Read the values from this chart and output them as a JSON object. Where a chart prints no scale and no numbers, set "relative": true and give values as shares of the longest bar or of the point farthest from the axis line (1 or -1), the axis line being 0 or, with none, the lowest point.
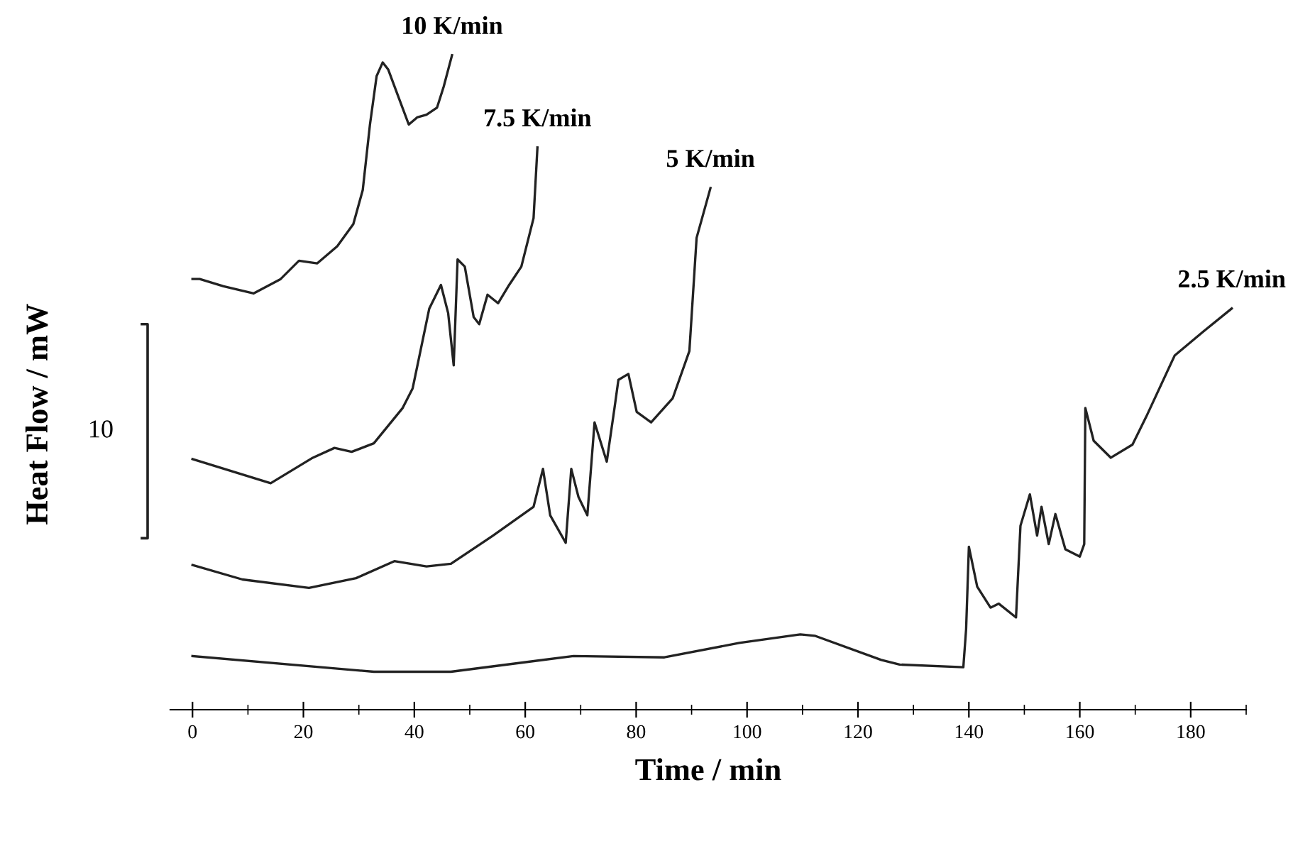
{
  "chart_data": {
    "type": "line",
    "relative": true,
    "xlabel": "Time / min",
    "ylabel": "Heat Flow / mW",
    "xlim": [
      -4,
      190
    ],
    "xticks": [
      0,
      20,
      40,
      60,
      80,
      100,
      120,
      140,
      160,
      180
    ],
    "grid": false,
    "legend": false,
    "marker": "none",
    "line_style": "solid",
    "tick_labels": "x",
    "annotations": [
      "10"
    ],
    "series": [
      {
        "name": "10 K/min",
        "color": "#222222",
        "x": [
          0,
          1.3,
          5.6,
          11.0,
          15.9,
          19.2,
          22.5,
          26.1,
          29.0,
          30.7,
          32.0,
          33.2,
          34.3,
          35.3,
          37.1,
          39.0,
          40.5,
          42.2,
          44.1,
          45.3,
          46.8
        ],
        "values": [
          0.658,
          0.658,
          0.647,
          0.636,
          0.658,
          0.686,
          0.682,
          0.708,
          0.742,
          0.794,
          0.894,
          0.968,
          0.989,
          0.978,
          0.937,
          0.894,
          0.905,
          0.909,
          0.92,
          0.952,
          1.0
        ]
      },
      {
        "name": "7.5 K/min",
        "color": "#222222",
        "x": [
          0,
          14.1,
          21.7,
          25.6,
          28.7,
          32.7,
          37.9,
          39.7,
          42.7,
          44.8,
          46.1,
          47.1,
          47.8,
          49.1,
          50.7,
          51.7,
          53.2,
          55.1,
          57.1,
          59.3,
          61.5,
          62.2
        ],
        "values": [
          0.383,
          0.346,
          0.385,
          0.4,
          0.394,
          0.407,
          0.461,
          0.491,
          0.613,
          0.649,
          0.606,
          0.526,
          0.688,
          0.677,
          0.6,
          0.589,
          0.634,
          0.621,
          0.649,
          0.677,
          0.751,
          0.859
        ]
      },
      {
        "name": "5 K/min",
        "color": "#222222",
        "x": [
          0,
          9.0,
          21.0,
          29.5,
          36.4,
          42.2,
          46.6,
          54.2,
          61.5,
          63.2,
          64.5,
          67.3,
          68.3,
          69.6,
          71.2,
          72.5,
          74.7,
          76.1,
          76.8,
          78.6,
          80.1,
          82.7,
          86.6,
          89.6,
          90.9,
          93.4
        ],
        "values": [
          0.221,
          0.199,
          0.186,
          0.201,
          0.227,
          0.219,
          0.223,
          0.266,
          0.31,
          0.368,
          0.297,
          0.255,
          0.368,
          0.325,
          0.297,
          0.439,
          0.379,
          0.461,
          0.504,
          0.513,
          0.455,
          0.439,
          0.476,
          0.548,
          0.721,
          0.797
        ]
      },
      {
        "name": "2.5 K/min",
        "color": "#222222",
        "x": [
          0,
          32.7,
          46.6,
          68.7,
          85.1,
          98.6,
          109.6,
          112.2,
          124.2,
          127.5,
          139.0,
          139.5,
          140.0,
          141.5,
          143.9,
          145.4,
          148.5,
          149.3,
          151.0,
          152.3,
          153.1,
          154.4,
          155.6,
          157.4,
          160.0,
          160.8,
          161.0,
          162.5,
          165.6,
          169.5,
          172.0,
          177.1,
          182.3,
          187.4
        ],
        "values": [
          0.082,
          0.058,
          0.058,
          0.082,
          0.08,
          0.102,
          0.115,
          0.113,
          0.076,
          0.069,
          0.065,
          0.123,
          0.249,
          0.188,
          0.156,
          0.162,
          0.141,
          0.281,
          0.329,
          0.266,
          0.31,
          0.253,
          0.299,
          0.245,
          0.234,
          0.253,
          0.461,
          0.411,
          0.385,
          0.405,
          0.448,
          0.541,
          0.578,
          0.613
        ]
      }
    ]
  }
}
